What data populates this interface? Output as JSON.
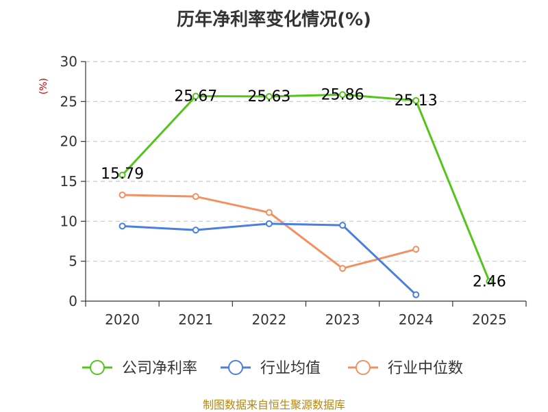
{
  "chart_data": {
    "type": "line",
    "title": "历年净利率变化情况(%)",
    "unit_label": "(%)",
    "categories": [
      "2020",
      "2021",
      "2022",
      "2023",
      "2024",
      "2025"
    ],
    "ylim": [
      0,
      30
    ],
    "yticks": [
      0,
      5,
      10,
      15,
      20,
      25,
      30
    ],
    "grid": true,
    "legend_position": "bottom",
    "series": [
      {
        "name": "公司净利率",
        "color": "#52c41a",
        "values": [
          15.79,
          25.67,
          25.63,
          25.86,
          25.13,
          2.46
        ],
        "labels": [
          "15.79",
          "25.67",
          "25.63",
          "25.86",
          "25.13",
          "2.46"
        ]
      },
      {
        "name": "行业均值",
        "color": "#4a7fdc",
        "values": [
          9.4,
          8.9,
          9.7,
          9.5,
          0.8,
          null
        ]
      },
      {
        "name": "行业中位数",
        "color": "#f39060",
        "values": [
          13.3,
          13.1,
          11.1,
          4.1,
          6.5,
          null
        ]
      }
    ]
  },
  "source": "制图数据来自恒生聚源数据库"
}
